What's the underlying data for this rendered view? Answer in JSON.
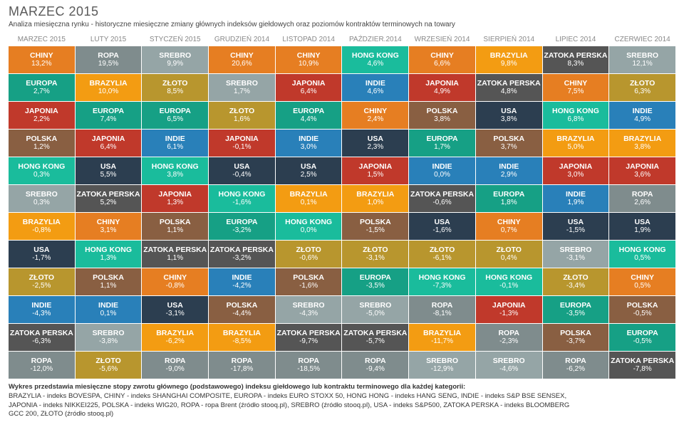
{
  "title": "MARZEC 2015",
  "subtitle": "Analiza miesięczna rynku - historyczne miesięczne zmiany głównych indeksów giełdowych oraz poziomów kontraktów terminowych na towary",
  "colors": {
    "BRAZYLIA": "#f39c12",
    "CHINY": "#e67e22",
    "EUROPA": "#16a085",
    "HONG KONG": "#1abc9c",
    "INDIE": "#2980b9",
    "JAPONIA": "#c0392b",
    "POLSKA": "#895f42",
    "ROPA": "#7f8c8d",
    "SREBRO": "#95a5a6",
    "USA": "#2c3e50",
    "ZATOKA PERSKA": "#555555",
    "ZŁOTO": "#b8962e"
  },
  "columns": [
    "MARZEC 2015",
    "LUTY 2015",
    "STYCZEŃ 2015",
    "GRUDZIEŃ 2014",
    "LISTOPAD 2014",
    "PAŹDZIER.2014",
    "WRZESIEŃ 2014",
    "SIERPIEŃ 2014",
    "LIPIEC 2014",
    "CZERWIEC 2014"
  ],
  "rows": [
    [
      {
        "l": "CHINY",
        "v": "13,2%"
      },
      {
        "l": "ROPA",
        "v": "19,5%"
      },
      {
        "l": "SREBRO",
        "v": "9,9%"
      },
      {
        "l": "CHINY",
        "v": "20,6%"
      },
      {
        "l": "CHINY",
        "v": "10,9%"
      },
      {
        "l": "HONG KONG",
        "v": "4,6%"
      },
      {
        "l": "CHINY",
        "v": "6,6%"
      },
      {
        "l": "BRAZYLIA",
        "v": "9,8%"
      },
      {
        "l": "ZATOKA PERSKA",
        "v": "8,3%"
      },
      {
        "l": "SREBRO",
        "v": "12,1%"
      }
    ],
    [
      {
        "l": "EUROPA",
        "v": "2,7%"
      },
      {
        "l": "BRAZYLIA",
        "v": "10,0%"
      },
      {
        "l": "ZŁOTO",
        "v": "8,5%"
      },
      {
        "l": "SREBRO",
        "v": "1,7%"
      },
      {
        "l": "JAPONIA",
        "v": "6,4%"
      },
      {
        "l": "INDIE",
        "v": "4,6%"
      },
      {
        "l": "JAPONIA",
        "v": "4,9%"
      },
      {
        "l": "ZATOKA PERSKA",
        "v": "4,8%"
      },
      {
        "l": "CHINY",
        "v": "7,5%"
      },
      {
        "l": "ZŁOTO",
        "v": "6,3%"
      }
    ],
    [
      {
        "l": "JAPONIA",
        "v": "2,2%"
      },
      {
        "l": "EUROPA",
        "v": "7,4%"
      },
      {
        "l": "EUROPA",
        "v": "6,5%"
      },
      {
        "l": "ZŁOTO",
        "v": "1,6%"
      },
      {
        "l": "EUROPA",
        "v": "4,4%"
      },
      {
        "l": "CHINY",
        "v": "2,4%"
      },
      {
        "l": "POLSKA",
        "v": "3,8%"
      },
      {
        "l": "USA",
        "v": "3,8%"
      },
      {
        "l": "HONG KONG",
        "v": "6,8%"
      },
      {
        "l": "INDIE",
        "v": "4,9%"
      }
    ],
    [
      {
        "l": "POLSKA",
        "v": "1,2%"
      },
      {
        "l": "JAPONIA",
        "v": "6,4%"
      },
      {
        "l": "INDIE",
        "v": "6,1%"
      },
      {
        "l": "JAPONIA",
        "v": "-0,1%"
      },
      {
        "l": "INDIE",
        "v": "3,0%"
      },
      {
        "l": "USA",
        "v": "2,3%"
      },
      {
        "l": "EUROPA",
        "v": "1,7%"
      },
      {
        "l": "POLSKA",
        "v": "3,7%"
      },
      {
        "l": "BRAZYLIA",
        "v": "5,0%"
      },
      {
        "l": "BRAZYLIA",
        "v": "3,8%"
      }
    ],
    [
      {
        "l": "HONG KONG",
        "v": "0,3%"
      },
      {
        "l": "USA",
        "v": "5,5%"
      },
      {
        "l": "HONG KONG",
        "v": "3,8%"
      },
      {
        "l": "USA",
        "v": "-0,4%"
      },
      {
        "l": "USA",
        "v": "2,5%"
      },
      {
        "l": "JAPONIA",
        "v": "1,5%"
      },
      {
        "l": "INDIE",
        "v": "0,0%"
      },
      {
        "l": "INDIE",
        "v": "2,9%"
      },
      {
        "l": "JAPONIA",
        "v": "3,0%"
      },
      {
        "l": "JAPONIA",
        "v": "3,6%"
      }
    ],
    [
      {
        "l": "SREBRO",
        "v": "0,3%"
      },
      {
        "l": "ZATOKA PERSKA",
        "v": "5,2%"
      },
      {
        "l": "JAPONIA",
        "v": "1,3%"
      },
      {
        "l": "HONG KONG",
        "v": "-1,6%"
      },
      {
        "l": "BRAZYLIA",
        "v": "0,1%"
      },
      {
        "l": "BRAZYLIA",
        "v": "1,0%"
      },
      {
        "l": "ZATOKA PERSKA",
        "v": "-0,6%"
      },
      {
        "l": "EUROPA",
        "v": "1,8%"
      },
      {
        "l": "INDIE",
        "v": "1,9%"
      },
      {
        "l": "ROPA",
        "v": "2,6%"
      }
    ],
    [
      {
        "l": "BRAZYLIA",
        "v": "-0,8%"
      },
      {
        "l": "CHINY",
        "v": "3,1%"
      },
      {
        "l": "POLSKA",
        "v": "1,1%"
      },
      {
        "l": "EUROPA",
        "v": "-3,2%"
      },
      {
        "l": "HONG KONG",
        "v": "0,0%"
      },
      {
        "l": "POLSKA",
        "v": "-1,5%"
      },
      {
        "l": "USA",
        "v": "-1,6%"
      },
      {
        "l": "CHINY",
        "v": "0,7%"
      },
      {
        "l": "USA",
        "v": "-1,5%"
      },
      {
        "l": "USA",
        "v": "1,9%"
      }
    ],
    [
      {
        "l": "USA",
        "v": "-1,7%"
      },
      {
        "l": "HONG KONG",
        "v": "1,3%"
      },
      {
        "l": "ZATOKA PERSKA",
        "v": "1,1%"
      },
      {
        "l": "ZATOKA PERSKA",
        "v": "-3,2%"
      },
      {
        "l": "ZŁOTO",
        "v": "-0,6%"
      },
      {
        "l": "ZŁOTO",
        "v": "-3,1%"
      },
      {
        "l": "ZŁOTO",
        "v": "-6,1%"
      },
      {
        "l": "ZŁOTO",
        "v": "0,4%"
      },
      {
        "l": "SREBRO",
        "v": "-3,1%"
      },
      {
        "l": "HONG KONG",
        "v": "0,5%"
      }
    ],
    [
      {
        "l": "ZŁOTO",
        "v": "-2,5%"
      },
      {
        "l": "POLSKA",
        "v": "1,1%"
      },
      {
        "l": "CHINY",
        "v": "-0,8%"
      },
      {
        "l": "INDIE",
        "v": "-4,2%"
      },
      {
        "l": "POLSKA",
        "v": "-1,6%"
      },
      {
        "l": "EUROPA",
        "v": "-3,5%"
      },
      {
        "l": "HONG KONG",
        "v": "-7,3%"
      },
      {
        "l": "HONG KONG",
        "v": "-0,1%"
      },
      {
        "l": "ZŁOTO",
        "v": "-3,4%"
      },
      {
        "l": "CHINY",
        "v": "0,5%"
      }
    ],
    [
      {
        "l": "INDIE",
        "v": "-4,3%"
      },
      {
        "l": "INDIE",
        "v": "0,1%"
      },
      {
        "l": "USA",
        "v": "-3,1%"
      },
      {
        "l": "POLSKA",
        "v": "-4,4%"
      },
      {
        "l": "SREBRO",
        "v": "-4,3%"
      },
      {
        "l": "SREBRO",
        "v": "-5,0%"
      },
      {
        "l": "ROPA",
        "v": "-8,1%"
      },
      {
        "l": "JAPONIA",
        "v": "-1,3%"
      },
      {
        "l": "EUROPA",
        "v": "-3,5%"
      },
      {
        "l": "POLSKA",
        "v": "-0,5%"
      }
    ],
    [
      {
        "l": "ZATOKA PERSKA",
        "v": "-6,3%"
      },
      {
        "l": "SREBRO",
        "v": "-3,8%"
      },
      {
        "l": "BRAZYLIA",
        "v": "-6,2%"
      },
      {
        "l": "BRAZYLIA",
        "v": "-8,5%"
      },
      {
        "l": "ZATOKA PERSKA",
        "v": "-9,7%"
      },
      {
        "l": "ZATOKA PERSKA",
        "v": "-5,7%"
      },
      {
        "l": "BRAZYLIA",
        "v": "-11,7%"
      },
      {
        "l": "ROPA",
        "v": "-2,3%"
      },
      {
        "l": "POLSKA",
        "v": "-3,7%"
      },
      {
        "l": "EUROPA",
        "v": "-0,5%"
      }
    ],
    [
      {
        "l": "ROPA",
        "v": "-12,0%"
      },
      {
        "l": "ZŁOTO",
        "v": "-5,6%"
      },
      {
        "l": "ROPA",
        "v": "-9,0%"
      },
      {
        "l": "ROPA",
        "v": "-17,8%"
      },
      {
        "l": "ROPA",
        "v": "-18,5%"
      },
      {
        "l": "ROPA",
        "v": "-9,4%"
      },
      {
        "l": "SREBRO",
        "v": "-12,9%"
      },
      {
        "l": "SREBRO",
        "v": "-4,6%"
      },
      {
        "l": "ROPA",
        "v": "-6,2%"
      },
      {
        "l": "ZATOKA PERSKA",
        "v": "-7,8%"
      }
    ]
  ],
  "footer": {
    "lead": "Wykres przedstawia miesięczne stopy zwrotu głównego (podstawowego) indeksu giełdowego lub kontraktu terminowego dla każdej kategorii:",
    "lines": [
      "BRAZYLIA - indeks BOVESPA, CHINY - indeks SHANGHAI COMPOSITE, EUROPA - indeks EURO STOXX 50, HONG HONG - indeks HANG SENG, INDIE - indeks S&P BSE SENSEX,",
      "JAPONIA - indeks NIKKEI225, POLSKA - indeks WIG20, ROPA - ropa Brent (źródło stooq.pl), SREBRO (źródło stooq.pl), USA - indeks S&P500, ZATOKA PERSKA - indeks BLOOMBERG",
      "GCC 200, ZŁOTO (źródło stooq.pl)"
    ]
  }
}
